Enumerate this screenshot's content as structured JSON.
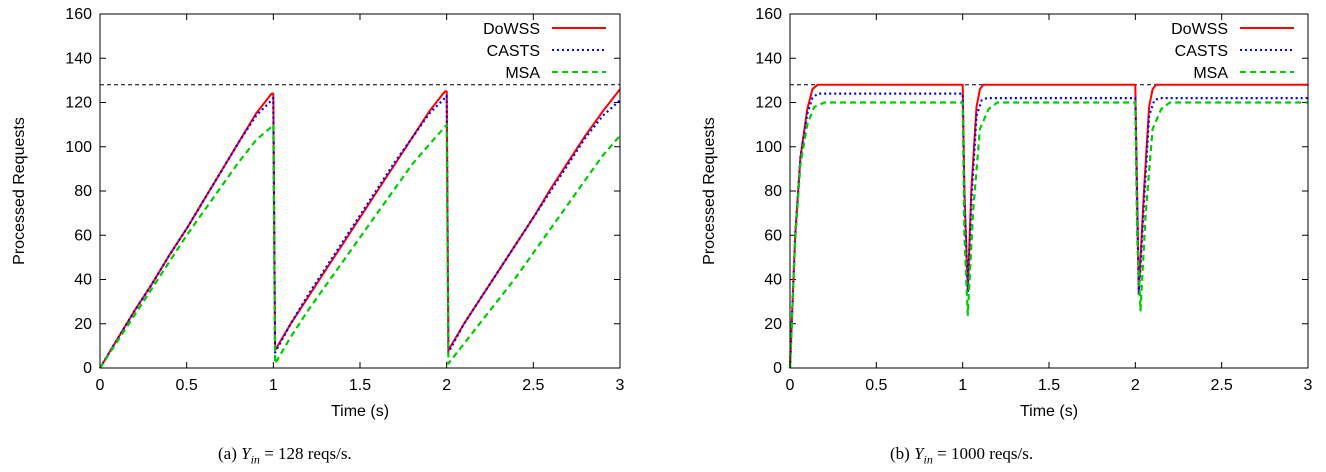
{
  "captions": [
    {
      "prefix": "(a) ",
      "symbol": "Y",
      "subscript": "in",
      "rest": " = 128 reqs/s."
    },
    {
      "prefix": "(b) ",
      "symbol": "Y",
      "subscript": "in",
      "rest": " = 1000 reqs/s."
    }
  ],
  "chart_data": [
    {
      "type": "line",
      "xlabel": "Time (s)",
      "ylabel": "Processed Requests",
      "xlim": [
        0,
        3
      ],
      "ylim": [
        0,
        160
      ],
      "xticks": [
        0,
        0.5,
        1,
        1.5,
        2,
        2.5,
        3
      ],
      "xtick_labels": [
        "0",
        "0.5",
        "1",
        "1.5",
        "2",
        "2.5",
        "3"
      ],
      "yticks": [
        0,
        20,
        40,
        60,
        80,
        100,
        120,
        140,
        160
      ],
      "ytick_labels": [
        "0",
        "20",
        "40",
        "60",
        "80",
        "100",
        "120",
        "140",
        "160"
      ],
      "grid": false,
      "legend_position": "top-right",
      "reference_line": {
        "y": 128,
        "style": "dashed",
        "color": "#000000"
      },
      "series": [
        {
          "name": "DoWSS",
          "color": "#ff0000",
          "dash": "solid",
          "points": [
            [
              0,
              0
            ],
            [
              0.1,
              13
            ],
            [
              0.2,
              26
            ],
            [
              0.3,
              38
            ],
            [
              0.4,
              51
            ],
            [
              0.5,
              63
            ],
            [
              0.6,
              76
            ],
            [
              0.7,
              89
            ],
            [
              0.8,
              102
            ],
            [
              0.9,
              115
            ],
            [
              0.99,
              124
            ],
            [
              1.0,
              124
            ],
            [
              1.01,
              8
            ],
            [
              1.1,
              20
            ],
            [
              1.2,
              32
            ],
            [
              1.3,
              44
            ],
            [
              1.4,
              56
            ],
            [
              1.5,
              68
            ],
            [
              1.6,
              80
            ],
            [
              1.7,
              92
            ],
            [
              1.8,
              104
            ],
            [
              1.9,
              116
            ],
            [
              1.99,
              125
            ],
            [
              2.0,
              125
            ],
            [
              2.01,
              8
            ],
            [
              2.1,
              20
            ],
            [
              2.2,
              32
            ],
            [
              2.3,
              44
            ],
            [
              2.4,
              56
            ],
            [
              2.5,
              68
            ],
            [
              2.6,
              81
            ],
            [
              2.7,
              93
            ],
            [
              2.8,
              105
            ],
            [
              2.9,
              116
            ],
            [
              3.0,
              126
            ]
          ]
        },
        {
          "name": "CASTS",
          "color": "#0000ff",
          "dash": "dotted",
          "points": [
            [
              0,
              0
            ],
            [
              0.1,
              13
            ],
            [
              0.2,
              26
            ],
            [
              0.3,
              38
            ],
            [
              0.4,
              51
            ],
            [
              0.5,
              63
            ],
            [
              0.6,
              76
            ],
            [
              0.7,
              89
            ],
            [
              0.8,
              102
            ],
            [
              0.9,
              114
            ],
            [
              0.99,
              121
            ],
            [
              1.0,
              122
            ],
            [
              1.01,
              7
            ],
            [
              1.1,
              20
            ],
            [
              1.2,
              33
            ],
            [
              1.3,
              45
            ],
            [
              1.4,
              57
            ],
            [
              1.5,
              69
            ],
            [
              1.6,
              81
            ],
            [
              1.7,
              93
            ],
            [
              1.8,
              104
            ],
            [
              1.9,
              115
            ],
            [
              1.99,
              122
            ],
            [
              2.0,
              123
            ],
            [
              2.01,
              7
            ],
            [
              2.1,
              20
            ],
            [
              2.2,
              32
            ],
            [
              2.3,
              44
            ],
            [
              2.4,
              56
            ],
            [
              2.5,
              68
            ],
            [
              2.6,
              80
            ],
            [
              2.7,
              92
            ],
            [
              2.8,
              104
            ],
            [
              2.9,
              114
            ],
            [
              3.0,
              121
            ]
          ]
        },
        {
          "name": "MSA",
          "color": "#00cc00",
          "dash": "dashed",
          "points": [
            [
              0,
              0
            ],
            [
              0.1,
              12
            ],
            [
              0.2,
              24
            ],
            [
              0.3,
              36
            ],
            [
              0.4,
              48
            ],
            [
              0.5,
              60
            ],
            [
              0.6,
              71
            ],
            [
              0.7,
              82
            ],
            [
              0.8,
              93
            ],
            [
              0.9,
              103
            ],
            [
              0.99,
              109
            ],
            [
              1.0,
              110
            ],
            [
              1.01,
              2
            ],
            [
              1.1,
              14
            ],
            [
              1.2,
              26
            ],
            [
              1.3,
              37
            ],
            [
              1.4,
              48
            ],
            [
              1.5,
              59
            ],
            [
              1.6,
              70
            ],
            [
              1.7,
              81
            ],
            [
              1.8,
              92
            ],
            [
              1.9,
              101
            ],
            [
              1.99,
              109
            ],
            [
              2.0,
              110
            ],
            [
              2.01,
              2
            ],
            [
              2.1,
              11
            ],
            [
              2.2,
              21
            ],
            [
              2.3,
              31
            ],
            [
              2.4,
              41
            ],
            [
              2.5,
              52
            ],
            [
              2.6,
              63
            ],
            [
              2.7,
              74
            ],
            [
              2.8,
              85
            ],
            [
              2.9,
              96
            ],
            [
              3.0,
              105
            ]
          ]
        }
      ]
    },
    {
      "type": "line",
      "xlabel": "Time (s)",
      "ylabel": "Processed Requests",
      "xlim": [
        0,
        3
      ],
      "ylim": [
        0,
        160
      ],
      "xticks": [
        0,
        0.5,
        1,
        1.5,
        2,
        2.5,
        3
      ],
      "xtick_labels": [
        "0",
        "0.5",
        "1",
        "1.5",
        "2",
        "2.5",
        "3"
      ],
      "yticks": [
        0,
        20,
        40,
        60,
        80,
        100,
        120,
        140,
        160
      ],
      "ytick_labels": [
        "0",
        "20",
        "40",
        "60",
        "80",
        "100",
        "120",
        "140",
        "160"
      ],
      "grid": false,
      "legend_position": "top-right",
      "reference_line": {
        "y": 128,
        "style": "dashed",
        "color": "#000000"
      },
      "series": [
        {
          "name": "DoWSS",
          "color": "#ff0000",
          "dash": "solid",
          "points": [
            [
              0,
              0
            ],
            [
              0.03,
              60
            ],
            [
              0.06,
              95
            ],
            [
              0.1,
              117
            ],
            [
              0.13,
              126
            ],
            [
              0.16,
              128
            ],
            [
              1.0,
              128
            ],
            [
              1.01,
              80
            ],
            [
              1.03,
              35
            ],
            [
              1.05,
              80
            ],
            [
              1.08,
              118
            ],
            [
              1.1,
              126
            ],
            [
              1.12,
              128
            ],
            [
              2.0,
              128
            ],
            [
              2.01,
              80
            ],
            [
              2.02,
              34
            ],
            [
              2.05,
              80
            ],
            [
              2.08,
              118
            ],
            [
              2.1,
              126
            ],
            [
              2.12,
              128
            ],
            [
              3.0,
              128
            ]
          ]
        },
        {
          "name": "CASTS",
          "color": "#0000ff",
          "dash": "dotted",
          "points": [
            [
              0,
              0
            ],
            [
              0.03,
              60
            ],
            [
              0.06,
              95
            ],
            [
              0.1,
              115
            ],
            [
              0.13,
              122
            ],
            [
              0.16,
              124
            ],
            [
              1.0,
              124
            ],
            [
              1.01,
              75
            ],
            [
              1.03,
              34
            ],
            [
              1.05,
              75
            ],
            [
              1.08,
              114
            ],
            [
              1.11,
              121
            ],
            [
              1.14,
              122
            ],
            [
              2.0,
              122
            ],
            [
              2.01,
              75
            ],
            [
              2.02,
              33
            ],
            [
              2.05,
              75
            ],
            [
              2.08,
              114
            ],
            [
              2.11,
              121
            ],
            [
              2.14,
              122
            ],
            [
              3.0,
              122
            ]
          ]
        },
        {
          "name": "MSA",
          "color": "#00cc00",
          "dash": "dashed",
          "points": [
            [
              0,
              0
            ],
            [
              0.03,
              58
            ],
            [
              0.06,
              92
            ],
            [
              0.1,
              110
            ],
            [
              0.14,
              118
            ],
            [
              0.2,
              120
            ],
            [
              1.0,
              120
            ],
            [
              1.01,
              60
            ],
            [
              1.03,
              24
            ],
            [
              1.06,
              70
            ],
            [
              1.1,
              108
            ],
            [
              1.15,
              117
            ],
            [
              1.2,
              120
            ],
            [
              2.0,
              120
            ],
            [
              2.01,
              60
            ],
            [
              2.03,
              26
            ],
            [
              2.06,
              70
            ],
            [
              2.1,
              108
            ],
            [
              2.15,
              117
            ],
            [
              2.2,
              120
            ],
            [
              3.0,
              120
            ]
          ]
        }
      ]
    }
  ]
}
